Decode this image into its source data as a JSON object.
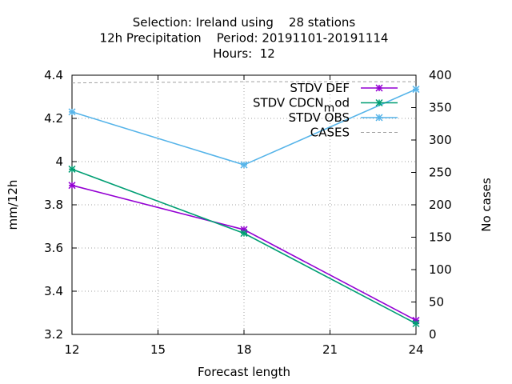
{
  "chart_data": {
    "type": "line",
    "title_lines": [
      "Selection: Ireland using    28 stations",
      "12h Precipitation    Period: 20191101-20191114",
      "Hours:  12"
    ],
    "xlabel": "Forecast length",
    "ylabel": "mm/12h",
    "y2label": "No cases",
    "xlim": [
      12,
      24
    ],
    "ylim": [
      3.2,
      4.4
    ],
    "y2lim": [
      0,
      400
    ],
    "xticks": [
      12,
      15,
      18,
      21,
      24
    ],
    "yticks": [
      3.2,
      3.4,
      3.6,
      3.8,
      4,
      4.2,
      4.4
    ],
    "y2ticks": [
      0,
      50,
      100,
      150,
      200,
      250,
      300,
      350,
      400
    ],
    "grid": true,
    "legend_position": "top-right",
    "x": [
      12,
      18,
      24
    ],
    "series": [
      {
        "name": "STDV DEF",
        "axis": "y",
        "color": "#9400d3",
        "marker": "star",
        "values": [
          3.89,
          3.685,
          3.265
        ]
      },
      {
        "name": "STDV CDCN",
        "name_sub": "m",
        "name_tail": "od",
        "axis": "y",
        "color": "#009e73",
        "marker": "star",
        "values": [
          3.965,
          3.668,
          3.25
        ]
      },
      {
        "name": "STDV OBS",
        "axis": "y",
        "color": "#56b4e9",
        "marker": "star",
        "values": [
          4.23,
          3.985,
          4.335
        ]
      },
      {
        "name": "CASES",
        "axis": "y2",
        "color": "#a0a0a0",
        "dashed": true,
        "x": [
          12,
          14,
          16,
          18,
          20,
          22,
          24
        ],
        "values": [
          388,
          389,
          389,
          390,
          390,
          390,
          390
        ]
      }
    ]
  }
}
